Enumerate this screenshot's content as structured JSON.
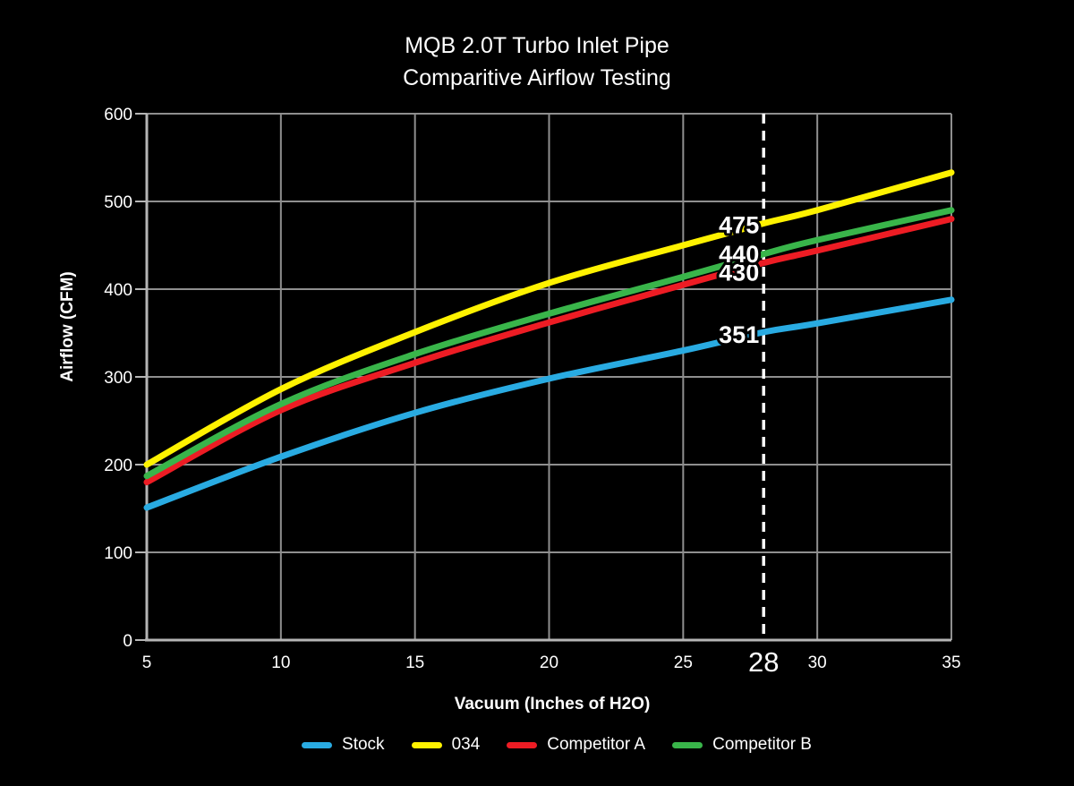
{
  "chart": {
    "title_line1": "MQB 2.0T Turbo Inlet Pipe",
    "title_line2": "Comparitive Airflow Testing",
    "x_axis_label": "Vacuum (Inches of H2O)",
    "y_axis_label": "Airflow (CFM)"
  },
  "chart_data": {
    "type": "line",
    "title": "MQB 2.0T Turbo Inlet Pipe Comparitive Airflow Testing",
    "xlabel": "Vacuum (Inches of H2O)",
    "ylabel": "Airflow (CFM)",
    "x": [
      5,
      10,
      15,
      20,
      25,
      28,
      30,
      35
    ],
    "x_ticks": [
      5,
      10,
      15,
      20,
      25,
      30,
      35
    ],
    "y_ticks": [
      0,
      100,
      200,
      300,
      400,
      500,
      600
    ],
    "xlim": [
      5,
      35
    ],
    "ylim": [
      0,
      600
    ],
    "grid": true,
    "legend_position": "bottom",
    "background_color": "#000000",
    "gridline_color": "#8f8f8f",
    "axis_color": "#b5b5b5",
    "highlight_tick": 28,
    "marker_line": {
      "x": 28,
      "style": "dashed",
      "color": "#ffffff"
    },
    "series": [
      {
        "name": "Stock",
        "color": "#29ABE2",
        "values": [
          151,
          209,
          259,
          298,
          330,
          351,
          361,
          388
        ],
        "callout": {
          "value": 351,
          "label": "351",
          "dy": 3
        }
      },
      {
        "name": "034",
        "color": "#FFF200",
        "values": [
          200,
          286,
          351,
          407,
          450,
          475,
          490,
          533
        ],
        "callout": {
          "value": 475,
          "label": "475",
          "dy": 2
        }
      },
      {
        "name": "Competitor A",
        "color": "#ED1C24",
        "values": [
          180,
          262,
          316,
          362,
          405,
          430,
          444,
          480
        ],
        "callout": {
          "value": 430,
          "label": "430",
          "dy": 11
        }
      },
      {
        "name": "Competitor B",
        "color": "#39B54A",
        "values": [
          187,
          269,
          326,
          372,
          414,
          440,
          456,
          490
        ],
        "callout": {
          "value": 440,
          "label": "440",
          "dy": 0
        }
      }
    ]
  }
}
